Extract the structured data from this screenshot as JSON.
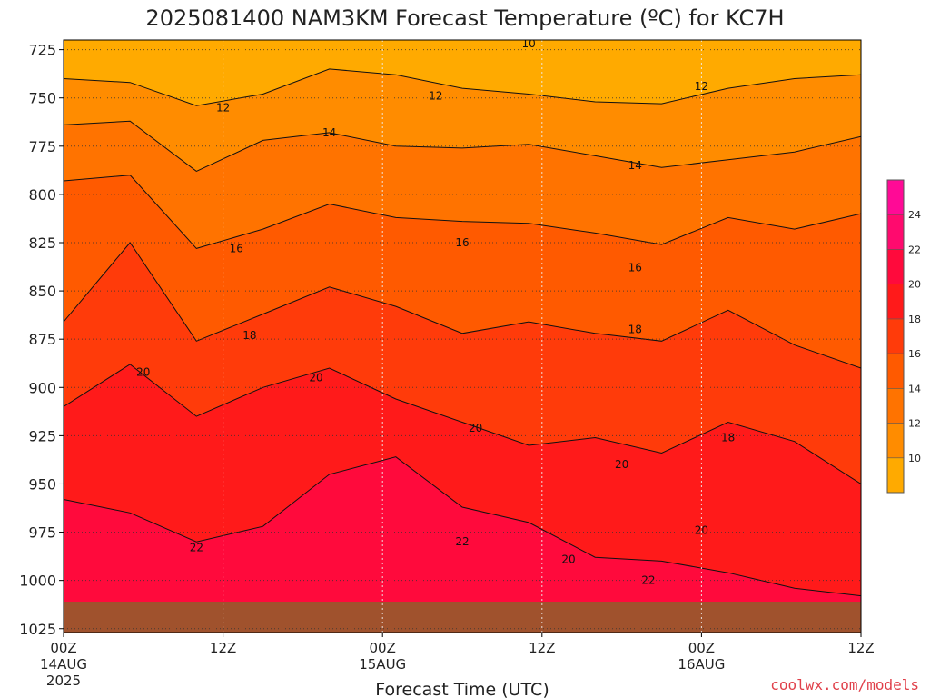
{
  "chart_data": {
    "type": "heatmap",
    "title": "2025081400 NAM3KM Forecast Temperature (ºC) for KC7H",
    "xlabel": "Forecast Time (UTC)",
    "ylabel": "",
    "x": [
      "00Z",
      "12Z",
      "00Z",
      "12Z",
      "00Z",
      "12Z"
    ],
    "x_date_labels": [
      {
        "tick": "00Z",
        "date": "14AUG",
        "year": "2025"
      },
      {
        "tick": "00Z",
        "date": "15AUG",
        "year": ""
      },
      {
        "tick": "00Z",
        "date": "16AUG",
        "year": ""
      }
    ],
    "x_hours": [
      0,
      12,
      24,
      36,
      48,
      60
    ],
    "xlim": [
      0,
      60
    ],
    "y_ticks": [
      "725",
      "750",
      "775",
      "800",
      "825",
      "850",
      "875",
      "900",
      "925",
      "950",
      "975",
      "1000",
      "1025"
    ],
    "ylim": [
      720,
      1027
    ],
    "y_reversed": true,
    "grid": true,
    "colorbar": {
      "levels": [
        10,
        12,
        14,
        16,
        18,
        20,
        22,
        24
      ],
      "tick_labels": [
        "10",
        "12",
        "14",
        "16",
        "18",
        "20",
        "22",
        "24"
      ],
      "colors": [
        "#ffaa00",
        "#ff8c00",
        "#ff7300",
        "#ff5a00",
        "#ff3b0a",
        "#ff1a1a",
        "#ff0a3c",
        "#ff0a6e",
        "#ff0a96"
      ],
      "position": "right"
    },
    "contour_levels": [
      10,
      12,
      14,
      16,
      18,
      20,
      22
    ],
    "isotherms_hpa": [
      {
        "level": 12,
        "values": [
          740,
          742,
          754,
          748,
          735,
          738,
          745,
          748,
          752,
          753,
          745,
          740,
          738
        ]
      },
      {
        "level": 14,
        "values": [
          764,
          762,
          788,
          772,
          768,
          775,
          776,
          774,
          780,
          786,
          782,
          778,
          770
        ]
      },
      {
        "level": 16,
        "values": [
          793,
          790,
          828,
          818,
          805,
          812,
          814,
          815,
          820,
          826,
          812,
          818,
          810
        ]
      },
      {
        "level": 18,
        "values": [
          866,
          825,
          876,
          862,
          848,
          858,
          872,
          866,
          872,
          876,
          860,
          878,
          890
        ]
      },
      {
        "level": 20,
        "values": [
          910,
          888,
          915,
          900,
          890,
          906,
          918,
          930,
          926,
          934,
          918,
          928,
          950
        ]
      },
      {
        "level": 22,
        "values": [
          958,
          965,
          980,
          972,
          945,
          936,
          962,
          970,
          988,
          990,
          996,
          1004,
          1008
        ]
      }
    ],
    "isotherm_x_hours": [
      0,
      5,
      10,
      15,
      20,
      25,
      30,
      35,
      40,
      45,
      50,
      55,
      60
    ],
    "contour_label_positions": [
      {
        "text": "10",
        "x_hours": 35,
        "y": 722
      },
      {
        "text": "12",
        "x_hours": 12,
        "y": 755
      },
      {
        "text": "12",
        "x_hours": 28,
        "y": 749
      },
      {
        "text": "12",
        "x_hours": 48,
        "y": 744
      },
      {
        "text": "14",
        "x_hours": 20,
        "y": 768
      },
      {
        "text": "14",
        "x_hours": 43,
        "y": 785
      },
      {
        "text": "16",
        "x_hours": 13,
        "y": 828
      },
      {
        "text": "16",
        "x_hours": 30,
        "y": 825
      },
      {
        "text": "16",
        "x_hours": 43,
        "y": 838
      },
      {
        "text": "18",
        "x_hours": 14,
        "y": 873
      },
      {
        "text": "18",
        "x_hours": 43,
        "y": 870
      },
      {
        "text": "18",
        "x_hours": 50,
        "y": 926
      },
      {
        "text": "20",
        "x_hours": 6,
        "y": 892
      },
      {
        "text": "20",
        "x_hours": 19,
        "y": 895
      },
      {
        "text": "20",
        "x_hours": 31,
        "y": 921
      },
      {
        "text": "20",
        "x_hours": 42,
        "y": 940
      },
      {
        "text": "20",
        "x_hours": 48,
        "y": 974
      },
      {
        "text": "20",
        "x_hours": 38,
        "y": 989
      },
      {
        "text": "22",
        "x_hours": 10,
        "y": 983
      },
      {
        "text": "22",
        "x_hours": 30,
        "y": 980
      },
      {
        "text": "22",
        "x_hours": 44,
        "y": 1000
      }
    ],
    "surface_hpa": 1011,
    "surface_color": "#a0522d"
  },
  "credit": "coolwx.com/models"
}
